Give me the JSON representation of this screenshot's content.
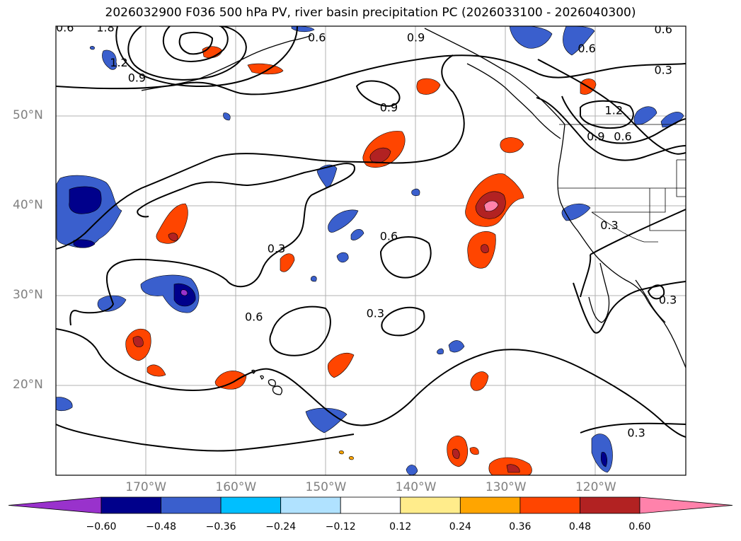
{
  "title": "2026032900 F036 500 hPa PV, river basin precipitation PC (2026033100 - 2026040300)",
  "map": {
    "lon_range": [
      -180,
      -110
    ],
    "lat_range": [
      10,
      60
    ],
    "lat_labels": [
      {
        "lat": 50,
        "text": "50°N"
      },
      {
        "lat": 40,
        "text": "40°N"
      },
      {
        "lat": 30,
        "text": "30°N"
      },
      {
        "lat": 20,
        "text": "20°N"
      }
    ],
    "lon_labels": [
      {
        "lon": -170,
        "text": "170°W"
      },
      {
        "lon": -160,
        "text": "160°W"
      },
      {
        "lon": -150,
        "text": "150°W"
      },
      {
        "lon": -140,
        "text": "140°W"
      },
      {
        "lon": -130,
        "text": "130°W"
      },
      {
        "lon": -120,
        "text": "120°W"
      }
    ],
    "contour_labels": [
      {
        "lon": -179,
        "lat": 59.4,
        "text": "0.6"
      },
      {
        "lon": -174.5,
        "lat": 59.4,
        "text": "1.8"
      },
      {
        "lon": -173,
        "lat": 55.5,
        "text": "1.2"
      },
      {
        "lon": -171,
        "lat": 53.8,
        "text": "0.9"
      },
      {
        "lon": -151,
        "lat": 58.3,
        "text": "0.6"
      },
      {
        "lon": -140,
        "lat": 58.3,
        "text": "0.9"
      },
      {
        "lon": -143,
        "lat": 50.5,
        "text": "0.9"
      },
      {
        "lon": -112.5,
        "lat": 59.2,
        "text": "0.6"
      },
      {
        "lon": -121,
        "lat": 57.1,
        "text": "0.6"
      },
      {
        "lon": -112.5,
        "lat": 54.7,
        "text": "0.3"
      },
      {
        "lon": -118,
        "lat": 50.2,
        "text": "1.2"
      },
      {
        "lon": -120,
        "lat": 47.3,
        "text": "0.9"
      },
      {
        "lon": -117,
        "lat": 47.3,
        "text": "0.6"
      },
      {
        "lon": -155.5,
        "lat": 34.8,
        "text": "0.3"
      },
      {
        "lon": -143,
        "lat": 36.2,
        "text": "0.6"
      },
      {
        "lon": -144.5,
        "lat": 27.6,
        "text": "0.3"
      },
      {
        "lon": -158,
        "lat": 27.2,
        "text": "0.6"
      },
      {
        "lon": -118.5,
        "lat": 37.4,
        "text": "0.3"
      },
      {
        "lon": -112,
        "lat": 29.1,
        "text": "0.3"
      },
      {
        "lon": -115.5,
        "lat": 14.3,
        "text": "0.3"
      }
    ]
  },
  "colorbar": {
    "bounds": [
      -0.6,
      -0.48,
      -0.36,
      -0.24,
      -0.12,
      0.12,
      0.24,
      0.36,
      0.48,
      0.6
    ],
    "labels": [
      "−0.60",
      "−0.48",
      "−0.36",
      "−0.24",
      "−0.12",
      "0.12",
      "0.24",
      "0.36",
      "0.48",
      "0.60"
    ],
    "colors": [
      "#9932cc",
      "#00008b",
      "#3a5fcd",
      "#00bfff",
      "#b0e2ff",
      "#ffffff",
      "#ffec8b",
      "#ffa500",
      "#ff4500",
      "#b22222",
      "#ff82ab"
    ]
  }
}
